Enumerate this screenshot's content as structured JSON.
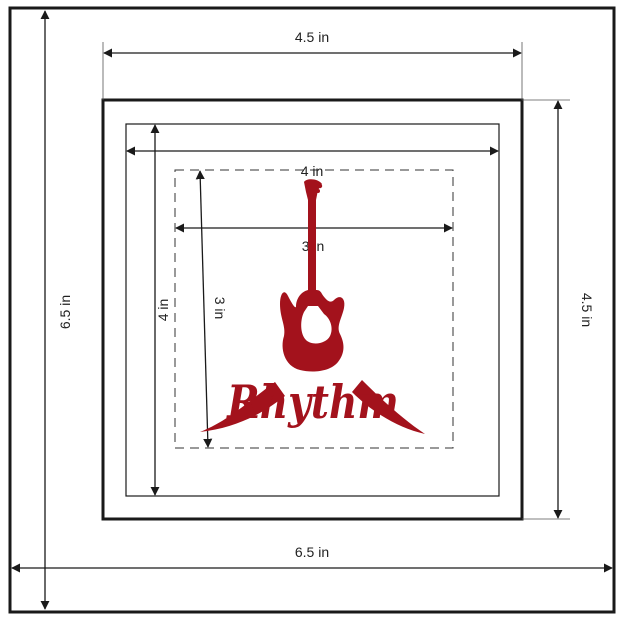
{
  "colors": {
    "line": "#1a1a1a",
    "logo": "#a3121c",
    "background": "#ffffff"
  },
  "dimensions": {
    "outer_width": "6.5 in",
    "outer_height": "6.5 in",
    "frame_width": "4.5 in",
    "frame_height": "4.5 in",
    "mat_width": "4 in",
    "mat_height": "4 in",
    "art_width": "3 in",
    "art_height": "3 in"
  },
  "logo": {
    "icon": "electric-guitar-icon",
    "text": "Rhythm"
  }
}
